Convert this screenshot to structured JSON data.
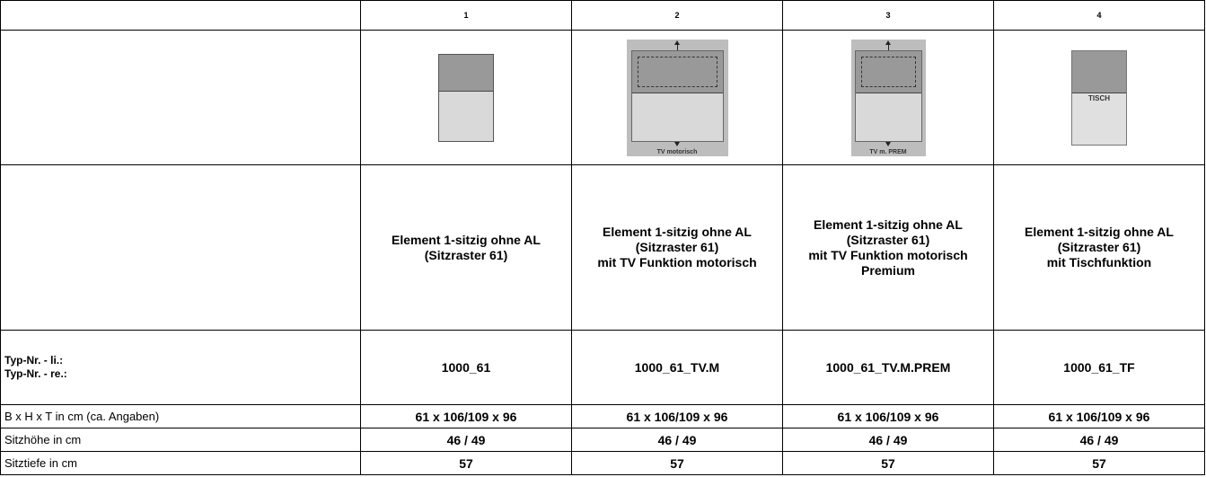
{
  "table": {
    "columns": [
      "1",
      "2",
      "3",
      "4"
    ],
    "images": [
      {
        "icon": "sofa-element-plain-icon",
        "label": ""
      },
      {
        "icon": "sofa-element-tv-motor-icon",
        "label": "TV motorisch"
      },
      {
        "icon": "sofa-element-tv-premium-icon",
        "label": "TV m. PREM"
      },
      {
        "icon": "sofa-element-table-icon",
        "label": "TISCH"
      }
    ],
    "names": [
      [
        "Element 1-sitzig ohne AL",
        "(Sitzraster 61)"
      ],
      [
        "Element 1-sitzig ohne AL",
        "(Sitzraster 61)",
        "mit TV Funktion motorisch"
      ],
      [
        "Element 1-sitzig ohne AL",
        "(Sitzraster 61)",
        "mit TV Funktion motorisch",
        "Premium"
      ],
      [
        "Element 1-sitzig ohne AL",
        "(Sitzraster 61)",
        "mit Tischfunktion"
      ]
    ],
    "typ_labels": [
      "Typ-Nr. - li.:",
      "Typ-Nr. - re.:"
    ],
    "typ_values": [
      "1000_61",
      "1000_61_TV.M",
      "1000_61_TV.M.PREM",
      "1000_61_TF"
    ],
    "rows": [
      {
        "label": "B x H x T in cm (ca. Angaben)",
        "values": [
          "61 x 106/109 x 96",
          "61 x 106/109 x 96",
          "61 x 106/109 x 96",
          "61 x 106/109 x 96"
        ]
      },
      {
        "label": "Sitzhöhe in cm",
        "values": [
          "46 / 49",
          "46 / 49",
          "46 / 49",
          "46 / 49"
        ]
      },
      {
        "label": "Sitztiefe in cm",
        "values": [
          "57",
          "57",
          "57",
          "57"
        ]
      }
    ]
  }
}
